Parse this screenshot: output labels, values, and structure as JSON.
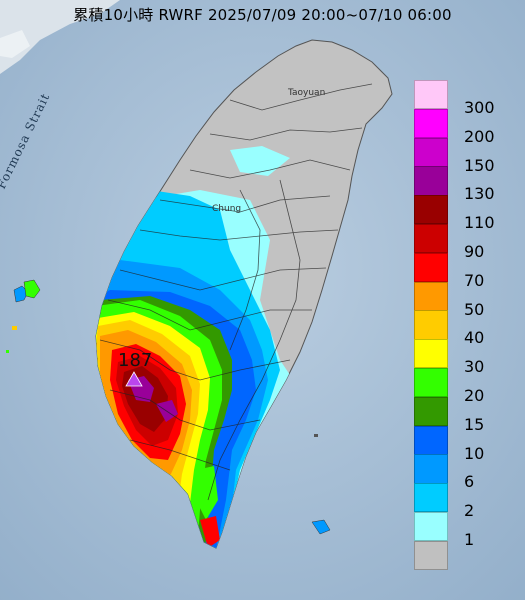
{
  "title": "累積10小時 RWRF 2025/07/09 20:00~07/10 06:00",
  "sea_label": "Formosa Strait",
  "cities": {
    "north": "Taoyuan",
    "central": "Chung"
  },
  "max_value": "187",
  "legend": [
    {
      "label": "300",
      "color": "#ffc8f8"
    },
    {
      "label": "200",
      "color": "#ff00ff"
    },
    {
      "label": "150",
      "color": "#cc00cc"
    },
    {
      "label": "130",
      "color": "#990099"
    },
    {
      "label": "110",
      "color": "#990000"
    },
    {
      "label": "90",
      "color": "#cc0000"
    },
    {
      "label": "70",
      "color": "#ff0000"
    },
    {
      "label": "50",
      "color": "#ff9900"
    },
    {
      "label": "40",
      "color": "#ffcc00"
    },
    {
      "label": "30",
      "color": "#ffff00"
    },
    {
      "label": "20",
      "color": "#33ff00"
    },
    {
      "label": "15",
      "color": "#339900"
    },
    {
      "label": "10",
      "color": "#0066ff"
    },
    {
      "label": "6",
      "color": "#0099ff"
    },
    {
      "label": "2",
      "color": "#00ccff"
    },
    {
      "label": "1",
      "color": "#99ffff"
    },
    {
      "label": "",
      "color": "#c0c0c0"
    }
  ],
  "colors": {
    "sea": "#a9bfd4",
    "land_gray": "#c2c2c2",
    "max_marker": "#bb44ee"
  }
}
